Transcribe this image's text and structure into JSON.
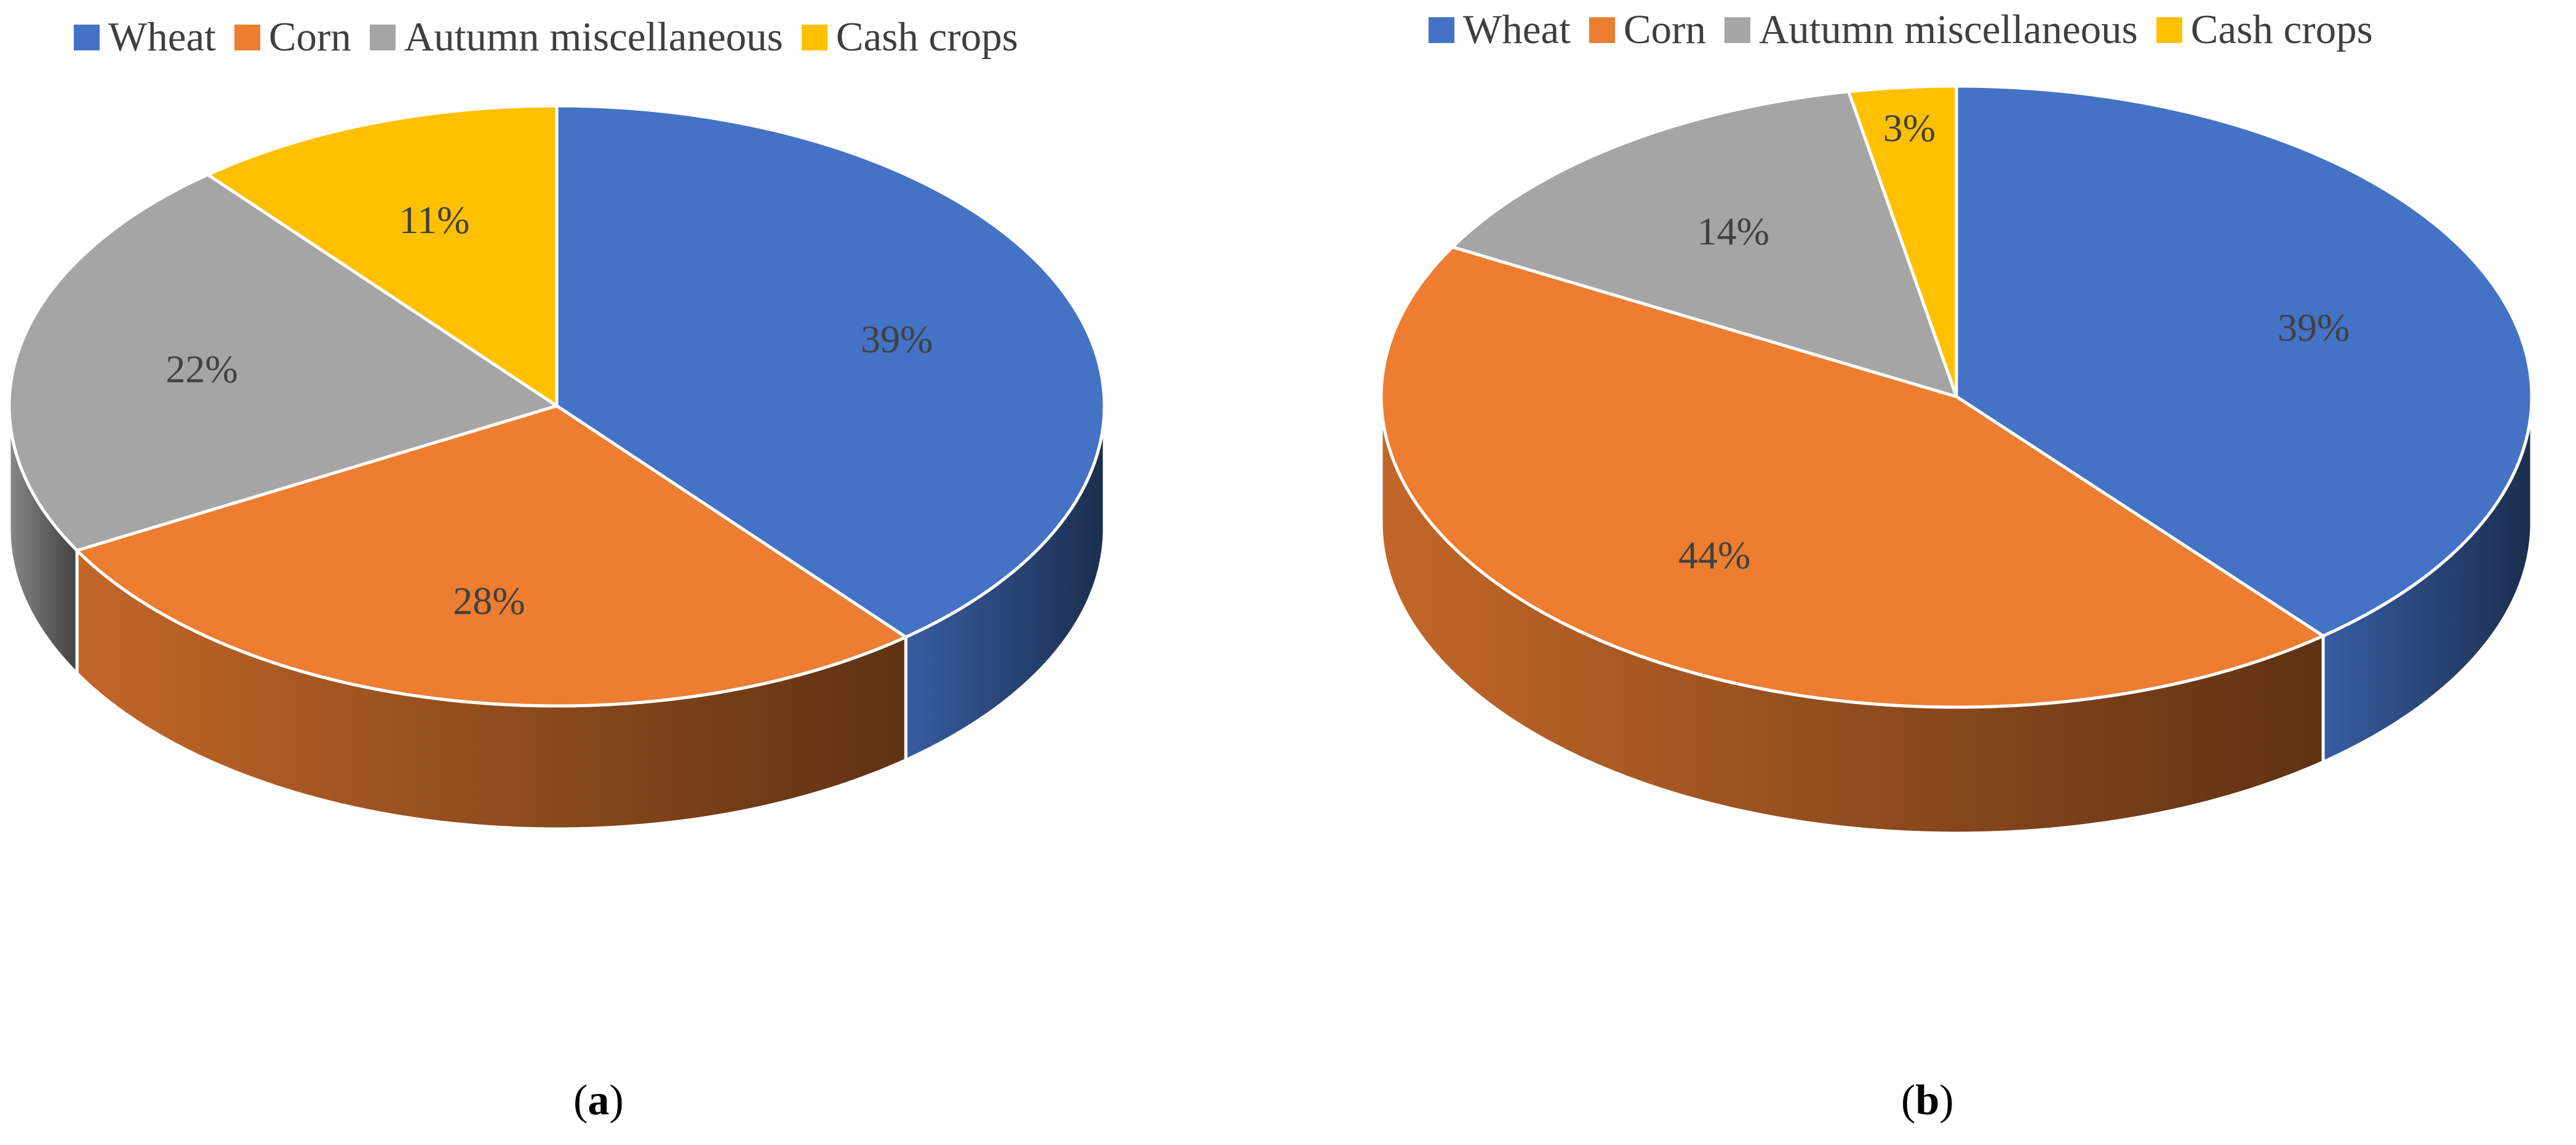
{
  "chart_data": [
    {
      "type": "pie",
      "panel_label": "a",
      "categories": [
        "Wheat",
        "Corn",
        "Autumn miscellaneous",
        "Cash crops"
      ],
      "values": [
        39,
        28,
        22,
        11
      ],
      "data_labels": [
        "39%",
        "28%",
        "22%",
        "11%"
      ],
      "colors": [
        "#4472C4",
        "#ED7D31",
        "#A5A5A5",
        "#FFC000"
      ],
      "legend_position": "top",
      "style": "3d"
    },
    {
      "type": "pie",
      "panel_label": "b",
      "categories": [
        "Wheat",
        "Corn",
        "Autumn miscellaneous",
        "Cash crops"
      ],
      "values": [
        39,
        44,
        14,
        3
      ],
      "data_labels": [
        "39%",
        "44%",
        "14%",
        "3%"
      ],
      "colors": [
        "#4472C4",
        "#ED7D31",
        "#A5A5A5",
        "#FFC000"
      ],
      "legend_position": "top",
      "style": "3d"
    }
  ]
}
